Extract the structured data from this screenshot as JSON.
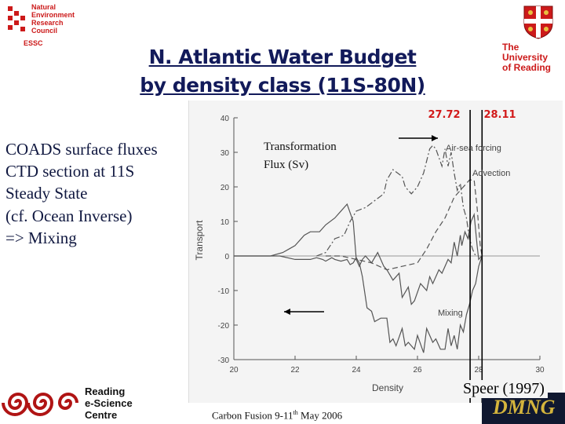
{
  "logos": {
    "nerc": {
      "lines": [
        "Natural",
        "Environment",
        "Research",
        "Council"
      ],
      "sub": "ESSC"
    },
    "reading": {
      "lines": [
        "The",
        "University",
        "of Reading"
      ]
    },
    "escience": {
      "lines": [
        "Reading",
        "e-Science",
        "Centre"
      ]
    }
  },
  "title": {
    "line1": "N. Atlantic Water Budget",
    "line2": "by density class (11S-80N)"
  },
  "left_text": [
    "COADS surface fluxes",
    "CTD section at 11S",
    "Steady State",
    "(cf. Ocean Inverse)",
    "=> Mixing"
  ],
  "density_marks": [
    "27.72",
    "28.11"
  ],
  "credit": "Speer (1997)",
  "corner_text": "DMNG",
  "footer": {
    "pre": "Carbon Fusion 9-11",
    "sup": "th",
    "post": " May 2006"
  },
  "colors": {
    "title": "#121a5a",
    "accent_red": "#cc1a1a",
    "density_red": "#d21a1a",
    "curves": "#555555"
  },
  "chart_data": {
    "type": "line",
    "xlabel": "Density",
    "ylabel": "Transport",
    "xlim": [
      20,
      30
    ],
    "ylim": [
      -30,
      40
    ],
    "x_ticks": [
      "20",
      "22",
      "24",
      "26",
      "28",
      "30"
    ],
    "y_ticks": [
      "40",
      "30",
      "20",
      "10",
      "0",
      "-10",
      "-20",
      "-30"
    ],
    "annotations": {
      "transformation": [
        "Transformation",
        "Flux (Sv)"
      ],
      "air_sea": "Air-sea forcing",
      "advection": "Advection",
      "mixing": "Mixing"
    },
    "vertical_lines_x": [
      27.72,
      28.11
    ],
    "series": [
      {
        "name": "Air-sea forcing",
        "style": "dash-dot",
        "x": [
          22.7,
          23.0,
          23.3,
          23.6,
          23.8,
          24.0,
          24.3,
          24.6,
          24.9,
          25.0,
          25.2,
          25.5,
          25.6,
          25.8,
          26.0,
          26.2,
          26.4,
          26.5,
          26.6,
          26.8,
          26.9,
          27.0,
          27.1,
          27.2,
          27.3,
          27.4,
          27.5,
          27.6,
          27.7,
          27.8,
          27.9
        ],
        "y": [
          0,
          1,
          5,
          6,
          10,
          13,
          14,
          16,
          18,
          22,
          25,
          23,
          20,
          18,
          20,
          24,
          31,
          32,
          31,
          26,
          31,
          26,
          30,
          24,
          19,
          21,
          14,
          11,
          5,
          2,
          0
        ]
      },
      {
        "name": "Advection",
        "style": "dashed",
        "x": [
          23.0,
          23.5,
          24.0,
          24.5,
          25.0,
          25.5,
          26.0,
          26.3,
          26.6,
          26.9,
          27.2,
          27.4,
          27.6,
          27.7,
          27.85,
          27.95,
          28.05,
          28.11
        ],
        "y": [
          0,
          0,
          -1,
          -2,
          -4,
          -3,
          -2,
          2,
          7,
          11,
          17,
          19,
          21,
          22,
          22,
          14,
          3,
          0
        ]
      },
      {
        "name": "Mixing",
        "style": "solid",
        "x": [
          20.0,
          21.0,
          21.5,
          22.0,
          22.3,
          22.5,
          22.7,
          22.9,
          23.0,
          23.2,
          23.3,
          23.5,
          23.7,
          23.8,
          23.9,
          24.0,
          24.1,
          24.2,
          24.35,
          24.5,
          24.6,
          24.8,
          25.0,
          25.1,
          25.2,
          25.3,
          25.5,
          25.6,
          25.7,
          25.9,
          26.0,
          26.2,
          26.3,
          26.5,
          26.6,
          26.75,
          26.9,
          27.0,
          27.1,
          27.2,
          27.3,
          27.4,
          27.5,
          27.6,
          27.7,
          27.8,
          27.9,
          28.0,
          28.11
        ],
        "y": [
          0,
          0,
          0,
          -1,
          -1,
          -1,
          -0.5,
          -1,
          -1.5,
          -0.5,
          -1,
          -1.5,
          -1,
          -2.5,
          -2,
          -0.5,
          -2,
          -6,
          -15,
          -16,
          -19,
          -18,
          -18,
          -25,
          -24,
          -26,
          -21,
          -26,
          -25,
          -27,
          -23,
          -28,
          -21,
          -25,
          -24,
          -27,
          -27,
          -21,
          -26,
          -23,
          -27,
          -20,
          -22,
          -17,
          -14,
          -10,
          -8,
          -3,
          0
        ]
      },
      {
        "name": "Transformation Flux",
        "style": "solid",
        "x": [
          20.0,
          20.8,
          21.2,
          21.6,
          21.8,
          22.0,
          22.3,
          22.5,
          22.8,
          23.0,
          23.3,
          23.5,
          23.7,
          23.9,
          24.0,
          24.1,
          24.2,
          24.3,
          24.5,
          24.7,
          24.9,
          25.0,
          25.2,
          25.4,
          25.5,
          25.7,
          25.8,
          25.9,
          26.1,
          26.3,
          26.4,
          26.5,
          26.7,
          26.8,
          27.0,
          27.1,
          27.2,
          27.3,
          27.4,
          27.45,
          27.55,
          27.65,
          27.75,
          27.85,
          27.95,
          28.0,
          28.1
        ],
        "y": [
          0,
          0,
          0,
          1,
          2,
          3,
          6,
          7,
          7,
          9,
          11,
          13,
          15,
          10,
          -1,
          -3,
          -1,
          0,
          -2,
          1,
          -3,
          -4,
          -7,
          -5,
          -12,
          -9,
          -14,
          -13,
          -8,
          -10,
          -6,
          -8,
          -4,
          -5,
          -1,
          -2,
          4,
          0,
          6,
          3,
          7,
          5,
          10,
          12,
          3,
          -1,
          0
        ]
      }
    ]
  }
}
